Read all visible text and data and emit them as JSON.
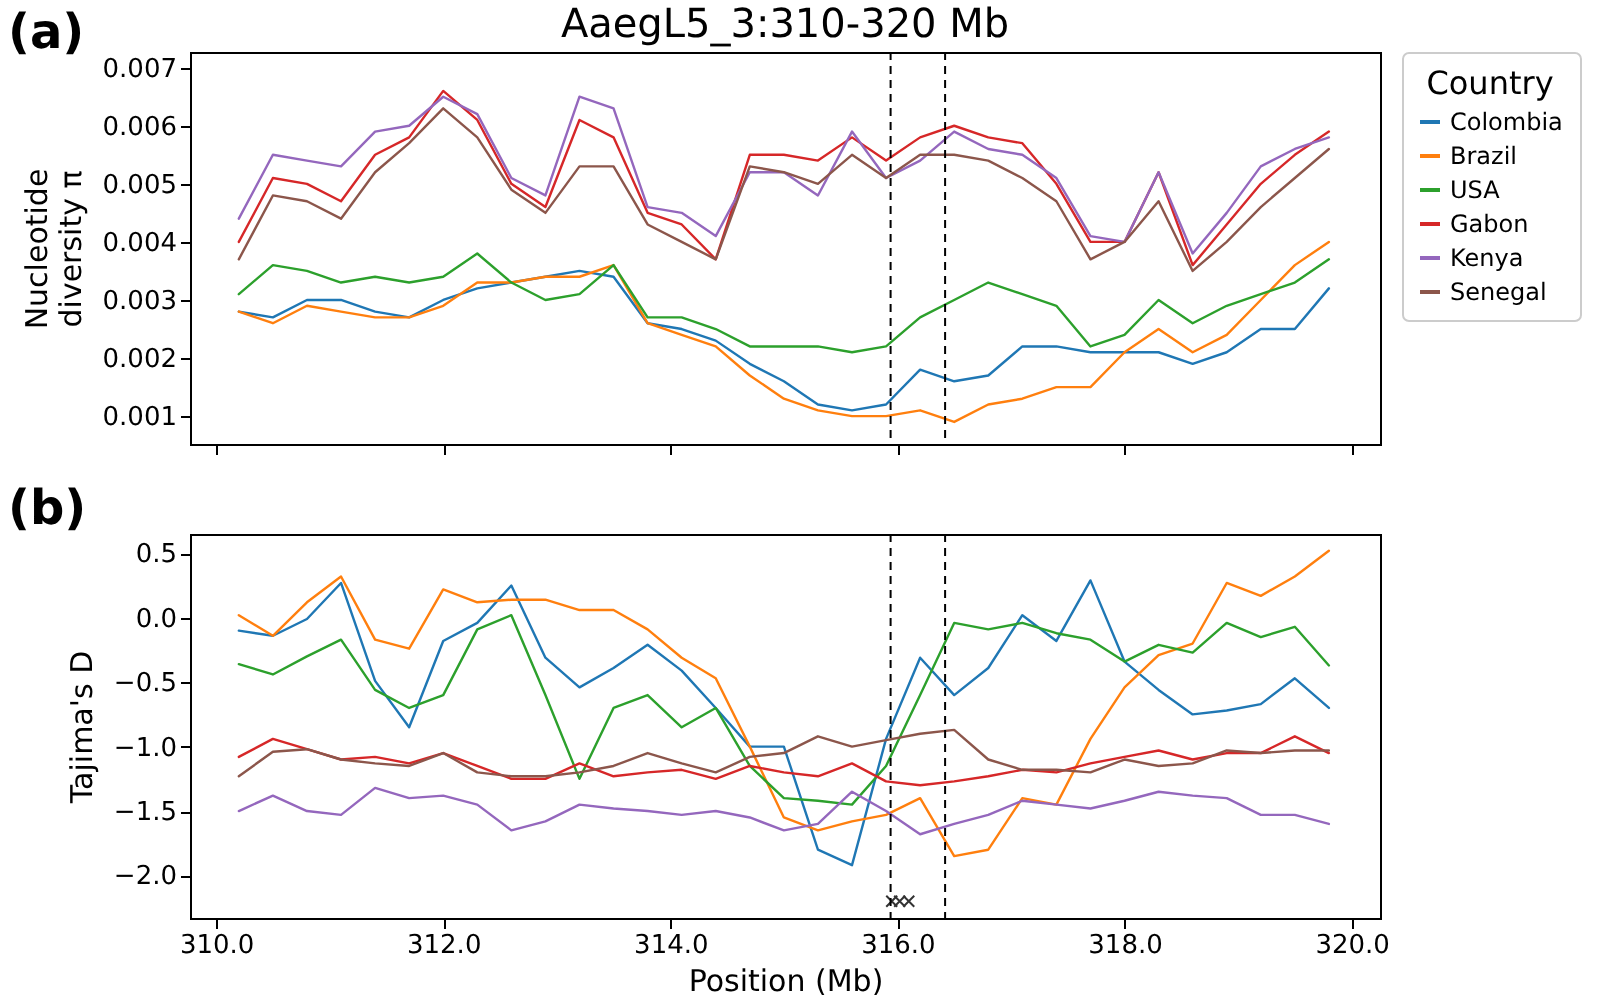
{
  "chart_data": [
    {
      "type": "line",
      "title": "AaegL5_3:310-320 Mb",
      "ylabel": "Nucleotide diversity π",
      "legend_title": "Country",
      "legend": "top right",
      "tick_labels": "y",
      "annotations": [
        "(a)"
      ],
      "xlim": [
        309.77,
        320.25
      ],
      "xticks": [
        {
          "value": 310,
          "label": null
        },
        {
          "value": 312,
          "label": null
        },
        {
          "value": 314,
          "label": null
        },
        {
          "value": 316,
          "label": null
        },
        {
          "value": 318,
          "label": null
        },
        {
          "value": 320,
          "label": null
        }
      ],
      "ylim": [
        0.00052,
        0.00727
      ],
      "yticks": [
        0.001,
        0.002,
        0.003,
        0.004,
        0.005,
        0.006,
        0.007
      ],
      "ref_lines": [
        {
          "axis": "x",
          "value": 315.94,
          "color": "#000000",
          "line_style": "dashed"
        },
        {
          "axis": "x",
          "value": 316.42,
          "color": "#000000",
          "line_style": "dashed"
        }
      ],
      "x": [
        310.2,
        310.5,
        310.8,
        311.1,
        311.4,
        311.7,
        312.0,
        312.3,
        312.6,
        312.9,
        313.2,
        313.5,
        313.8,
        314.1,
        314.4,
        314.7,
        315.0,
        315.3,
        315.6,
        315.9,
        316.2,
        316.5,
        316.8,
        317.1,
        317.4,
        317.7,
        318.0,
        318.3,
        318.6,
        318.9,
        319.2,
        319.5,
        319.8
      ],
      "series": [
        {
          "name": "Colombia",
          "color": "#1f77b4",
          "values": [
            0.0028,
            0.0027,
            0.003,
            0.003,
            0.0028,
            0.0027,
            0.003,
            0.0032,
            0.0033,
            0.0034,
            0.0035,
            0.0034,
            0.0026,
            0.0025,
            0.0023,
            0.0019,
            0.0016,
            0.0012,
            0.0011,
            0.0012,
            0.0018,
            0.0016,
            0.0017,
            0.0022,
            0.0022,
            0.0021,
            0.0021,
            0.0021,
            0.0019,
            0.0021,
            0.0025,
            0.0025,
            0.0032
          ]
        },
        {
          "name": "Brazil",
          "color": "#ff7f0e",
          "values": [
            0.0028,
            0.0026,
            0.0029,
            0.0028,
            0.0027,
            0.0027,
            0.0029,
            0.0033,
            0.0033,
            0.0034,
            0.0034,
            0.0036,
            0.0026,
            0.0024,
            0.0022,
            0.0017,
            0.0013,
            0.0011,
            0.001,
            0.001,
            0.0011,
            0.0009,
            0.0012,
            0.0013,
            0.0015,
            0.0015,
            0.0021,
            0.0025,
            0.0021,
            0.0024,
            0.003,
            0.0036,
            0.004
          ]
        },
        {
          "name": "USA",
          "color": "#2ca02c",
          "values": [
            0.0031,
            0.0036,
            0.0035,
            0.0033,
            0.0034,
            0.0033,
            0.0034,
            0.0038,
            0.0033,
            0.003,
            0.0031,
            0.0036,
            0.0027,
            0.0027,
            0.0025,
            0.0022,
            0.0022,
            0.0022,
            0.0021,
            0.0022,
            0.0027,
            0.003,
            0.0033,
            0.0031,
            0.0029,
            0.0022,
            0.0024,
            0.003,
            0.0026,
            0.0029,
            0.0031,
            0.0033,
            0.0037
          ]
        },
        {
          "name": "Gabon",
          "color": "#d62728",
          "values": [
            0.004,
            0.0051,
            0.005,
            0.0047,
            0.0055,
            0.0058,
            0.0066,
            0.0061,
            0.005,
            0.0046,
            0.0061,
            0.0058,
            0.0045,
            0.0043,
            0.0037,
            0.0055,
            0.0055,
            0.0054,
            0.0058,
            0.0054,
            0.0058,
            0.006,
            0.0058,
            0.0057,
            0.005,
            0.004,
            0.004,
            0.0052,
            0.0036,
            0.0043,
            0.005,
            0.0055,
            0.0059
          ]
        },
        {
          "name": "Kenya",
          "color": "#9467bd",
          "values": [
            0.0044,
            0.0055,
            0.0054,
            0.0053,
            0.0059,
            0.006,
            0.0065,
            0.0062,
            0.0051,
            0.0048,
            0.0065,
            0.0063,
            0.0046,
            0.0045,
            0.0041,
            0.0052,
            0.0052,
            0.0048,
            0.0059,
            0.0051,
            0.0054,
            0.0059,
            0.0056,
            0.0055,
            0.0051,
            0.0041,
            0.004,
            0.0052,
            0.0038,
            0.0045,
            0.0053,
            0.0056,
            0.0058
          ]
        },
        {
          "name": "Senegal",
          "color": "#8c564b",
          "values": [
            0.0037,
            0.0048,
            0.0047,
            0.0044,
            0.0052,
            0.0057,
            0.0063,
            0.0058,
            0.0049,
            0.0045,
            0.0053,
            0.0053,
            0.0043,
            0.004,
            0.0037,
            0.0053,
            0.0052,
            0.005,
            0.0055,
            0.0051,
            0.0055,
            0.0055,
            0.0054,
            0.0051,
            0.0047,
            0.0037,
            0.004,
            0.0047,
            0.0035,
            0.004,
            0.0046,
            0.0051,
            0.0056
          ]
        }
      ]
    },
    {
      "type": "line",
      "xlabel": "Position (Mb)",
      "ylabel": "Tajima's D",
      "annotations": [
        "(b)"
      ],
      "xlim": [
        309.77,
        320.25
      ],
      "xticks": [
        {
          "value": 310,
          "label": "310.0"
        },
        {
          "value": 312,
          "label": "312.0"
        },
        {
          "value": 314,
          "label": "314.0"
        },
        {
          "value": 316,
          "label": "316.0"
        },
        {
          "value": 318,
          "label": "318.0"
        },
        {
          "value": 320,
          "label": "320.0"
        }
      ],
      "ylim": [
        -2.33,
        0.65
      ],
      "yticks": [
        {
          "value": -2,
          "label": "−2.0"
        },
        {
          "value": -1.5,
          "label": "−1.5"
        },
        {
          "value": -1,
          "label": "−1.0"
        },
        {
          "value": -0.5,
          "label": "−0.5"
        },
        {
          "value": 0,
          "label": "0.0"
        },
        {
          "value": 0.5,
          "label": "0.5"
        }
      ],
      "ref_lines": [
        {
          "axis": "x",
          "value": 315.94,
          "color": "#000000",
          "line_style": "dashed"
        },
        {
          "axis": "x",
          "value": 316.42,
          "color": "#000000",
          "line_style": "dashed"
        }
      ],
      "x": [
        310.2,
        310.5,
        310.8,
        311.1,
        311.4,
        311.7,
        312.0,
        312.3,
        312.6,
        312.9,
        313.2,
        313.5,
        313.8,
        314.1,
        314.4,
        314.7,
        315.0,
        315.3,
        315.6,
        315.9,
        316.2,
        316.5,
        316.8,
        317.1,
        317.4,
        317.7,
        318.0,
        318.3,
        318.6,
        318.9,
        319.2,
        319.5,
        319.8
      ],
      "series": [
        {
          "name": "Colombia",
          "color": "#1f77b4",
          "values": [
            -0.1,
            -0.14,
            -0.01,
            0.27,
            -0.49,
            -0.85,
            -0.18,
            -0.04,
            0.25,
            -0.31,
            -0.54,
            -0.39,
            -0.21,
            -0.41,
            -0.7,
            -1.0,
            -1.0,
            -1.8,
            -1.92,
            -0.94,
            -0.31,
            -0.6,
            -0.39,
            0.02,
            -0.18,
            0.29,
            -0.34,
            -0.56,
            -0.75,
            -0.72,
            -0.67,
            -0.47,
            -0.7
          ]
        },
        {
          "name": "Brazil",
          "color": "#ff7f0e",
          "values": [
            0.02,
            -0.14,
            0.12,
            0.32,
            -0.17,
            -0.24,
            0.22,
            0.12,
            0.14,
            0.14,
            0.06,
            0.06,
            -0.09,
            -0.31,
            -0.47,
            -1.0,
            -1.55,
            -1.65,
            -1.58,
            -1.53,
            -1.4,
            -1.85,
            -1.8,
            -1.4,
            -1.45,
            -0.94,
            -0.54,
            -0.29,
            -0.2,
            0.27,
            0.17,
            0.32,
            0.52
          ]
        },
        {
          "name": "USA",
          "color": "#2ca02c",
          "values": [
            -0.36,
            -0.44,
            -0.3,
            -0.17,
            -0.56,
            -0.7,
            -0.6,
            -0.09,
            0.02,
            -0.6,
            -1.25,
            -0.7,
            -0.6,
            -0.85,
            -0.7,
            -1.15,
            -1.4,
            -1.42,
            -1.45,
            -1.15,
            -0.6,
            -0.04,
            -0.09,
            -0.04,
            -0.12,
            -0.17,
            -0.34,
            -0.21,
            -0.27,
            -0.04,
            -0.15,
            -0.07,
            -0.37
          ]
        },
        {
          "name": "Gabon",
          "color": "#d62728",
          "values": [
            -1.08,
            -0.94,
            -1.02,
            -1.1,
            -1.08,
            -1.13,
            -1.05,
            -1.15,
            -1.25,
            -1.25,
            -1.13,
            -1.23,
            -1.2,
            -1.18,
            -1.25,
            -1.15,
            -1.2,
            -1.23,
            -1.13,
            -1.27,
            -1.3,
            -1.27,
            -1.23,
            -1.18,
            -1.2,
            -1.13,
            -1.08,
            -1.03,
            -1.1,
            -1.05,
            -1.05,
            -0.92,
            -1.05
          ]
        },
        {
          "name": "Kenya",
          "color": "#9467bd",
          "values": [
            -1.5,
            -1.38,
            -1.5,
            -1.53,
            -1.32,
            -1.4,
            -1.38,
            -1.45,
            -1.65,
            -1.58,
            -1.45,
            -1.48,
            -1.5,
            -1.53,
            -1.5,
            -1.55,
            -1.65,
            -1.6,
            -1.35,
            -1.5,
            -1.68,
            -1.6,
            -1.53,
            -1.42,
            -1.45,
            -1.48,
            -1.42,
            -1.35,
            -1.38,
            -1.4,
            -1.53,
            -1.53,
            -1.6
          ]
        },
        {
          "name": "Senegal",
          "color": "#8c564b",
          "values": [
            -1.23,
            -1.04,
            -1.02,
            -1.1,
            -1.13,
            -1.15,
            -1.05,
            -1.2,
            -1.23,
            -1.23,
            -1.2,
            -1.15,
            -1.05,
            -1.13,
            -1.2,
            -1.08,
            -1.05,
            -0.92,
            -1.0,
            -0.95,
            -0.9,
            -0.87,
            -1.1,
            -1.18,
            -1.18,
            -1.2,
            -1.1,
            -1.15,
            -1.13,
            -1.03,
            -1.05,
            -1.03,
            -1.03
          ]
        },
        {
          "type": "scatter",
          "color": "#333333",
          "marker": "cross",
          "x": [
            315.95,
            316.02,
            316.1
          ],
          "values": [
            -2.2,
            -2.2,
            -2.2
          ]
        }
      ]
    }
  ]
}
